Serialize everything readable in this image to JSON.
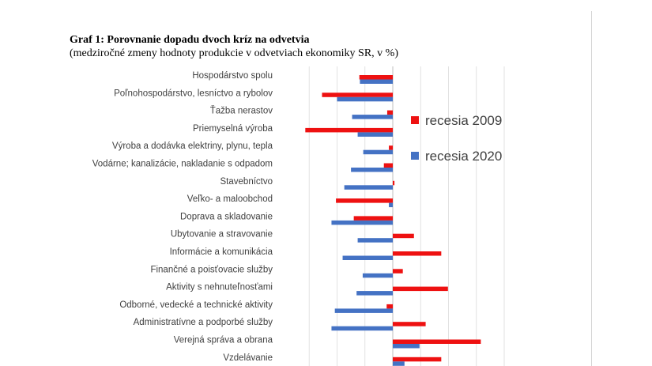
{
  "chart_data": {
    "type": "bar",
    "orientation": "horizontal",
    "title": "Graf 1: Porovnanie dopadu dvoch kríz na odvetvia",
    "subtitle": "(medziročné zmeny hodnoty produkcie v odvetviach ekonomiky SR, v %)",
    "categories": [
      "Hospodárstvo spolu",
      "Poľnohospodárstvo, lesníctvo a rybolov",
      "Ťažba nerastov",
      "Priemyselná výroba",
      "Výroba a dodávka elektriny, plynu, tepla",
      "Vodárne; kanalizácie, nakladanie s odpadom",
      "Stavebníctvo",
      "Veľko- a maloobchod",
      "Doprava a skladovanie",
      "Ubytovanie a stravovanie",
      "Informácie a komunikácia",
      "Finančné a poisťovacie služby",
      "Aktivity s nehnuteľnosťami",
      "Odborné, vedecké a technické aktivity",
      "Administratívne a podporbé služby",
      "Verejná správa a obrana",
      "Vzdelávanie"
    ],
    "series": [
      {
        "name": "recesia 2009",
        "color": "#ee1111",
        "values": [
          -6.0,
          -12.7,
          -1.0,
          -15.7,
          -0.7,
          -1.6,
          0.3,
          -10.2,
          -7.0,
          3.8,
          8.7,
          1.8,
          9.9,
          -1.1,
          5.9,
          15.8,
          8.7
        ]
      },
      {
        "name": "recesia 2020",
        "color": "#4472c4",
        "values": [
          -5.9,
          -10.0,
          -7.3,
          -6.3,
          -5.3,
          -7.5,
          -8.7,
          -0.7,
          -11.0,
          -6.3,
          -9.0,
          -5.4,
          -6.5,
          -10.4,
          -11.0,
          4.8,
          2.1
        ]
      }
    ],
    "xlim": [
      -16.5,
      20.5
    ],
    "grid": "vertical",
    "legend_position": "right"
  }
}
